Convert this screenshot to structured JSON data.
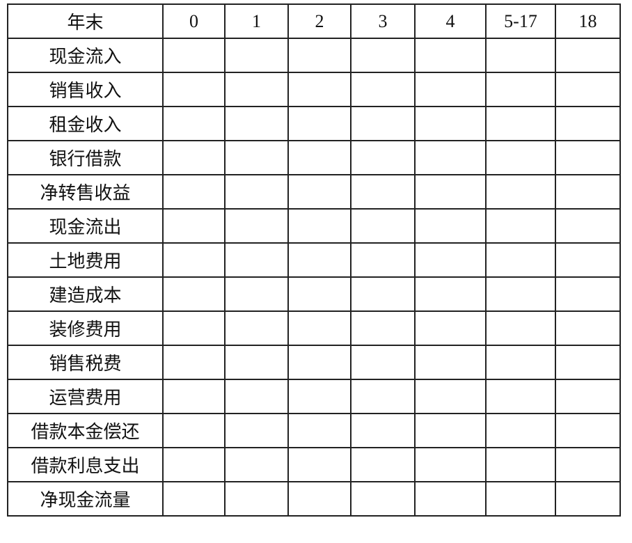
{
  "table": {
    "header": [
      "年末",
      "0",
      "1",
      "2",
      "3",
      "4",
      "5-17",
      "18"
    ],
    "rows": [
      "现金流入",
      "销售收入",
      "租金收入",
      "银行借款",
      "净转售收益",
      "现金流出",
      "土地费用",
      "建造成本",
      "装修费用",
      "销售税费",
      "运营费用",
      "借款本金偿还",
      "借款利息支出",
      "净现金流量"
    ]
  }
}
